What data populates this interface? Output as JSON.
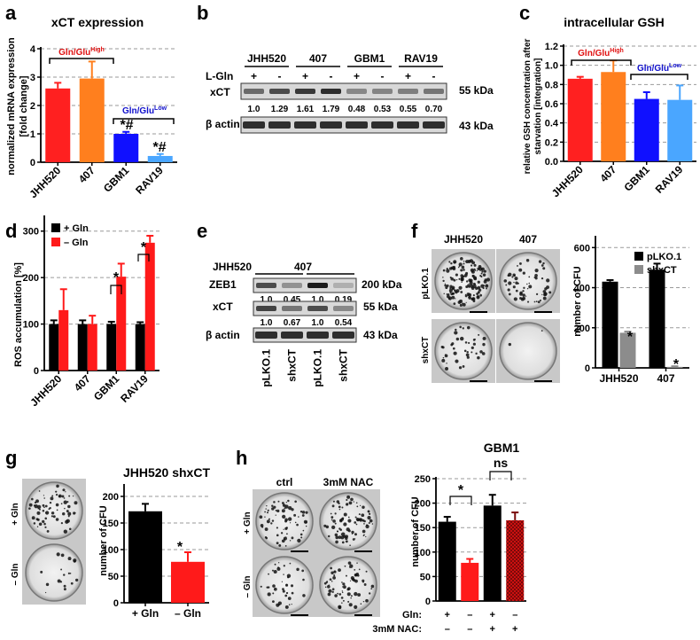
{
  "panels": {
    "a": {
      "letter": "a",
      "title": "xCT expression",
      "ylabel": [
        "normalized mRNA expression",
        "[fold change]"
      ],
      "group_high_prefix": "Gln/Glu",
      "group_high_sup": "High",
      "group_low_prefix": "Gln/Glu",
      "group_low_sup": "Low",
      "sig_gbm1": "*#",
      "sig_rav19": "*#"
    },
    "b": {
      "letter": "b",
      "cell_lines": [
        "JHH520",
        "407",
        "GBM1",
        "RAV19"
      ],
      "lgln_label": "L-Gln",
      "lane_signs": [
        "+",
        "-",
        "+",
        "-",
        "+",
        "-",
        "+",
        "-"
      ],
      "row_xct": "xCT",
      "row_actin": "β actin",
      "xct_values": [
        "1.0",
        "1.29",
        "1.61",
        "1.79",
        "0.48",
        "0.53",
        "0.55",
        "0.70"
      ],
      "kda_xct": "55 kDa",
      "kda_actin": "43 kDa"
    },
    "c": {
      "letter": "c",
      "title": "intracellular GSH",
      "ylabel": [
        "relative GSH concentration after",
        "starvation [integration]"
      ],
      "group_high_prefix": "Gln/Glu",
      "group_high_sup": "High",
      "group_low_prefix": "Gln/Glu",
      "group_low_sup": "Low"
    },
    "d": {
      "letter": "d",
      "ylabel": "ROS accumulation [%]",
      "legend": [
        "+ Gln",
        "– Gln"
      ],
      "sig_gbm1": "*",
      "sig_rav19": "*"
    },
    "e": {
      "letter": "e",
      "cell_lines": [
        "JHH520",
        "407"
      ],
      "row_zeb1": "ZEB1",
      "row_xct": "xCT",
      "row_actin": "β actin",
      "zeb1_values": [
        "1.0",
        "0.45",
        "1.0",
        "0.19"
      ],
      "xct_values": [
        "1.0",
        "0.67",
        "1.0",
        "0.54"
      ],
      "kda_zeb1": "200 kDa",
      "kda_xct": "55 kDa",
      "kda_actin": "43 kDa",
      "lanes": [
        "pLKO.1",
        "shxCT",
        "pLKO.1",
        "shxCT"
      ]
    },
    "f": {
      "letter": "f",
      "col_labels": [
        "JHH520",
        "407"
      ],
      "row_labels": [
        "pLKO.1",
        "shxCT"
      ],
      "ylabel": "number of CFU",
      "legend": [
        "pLKO.1",
        "shxCT"
      ],
      "sig": "*"
    },
    "g": {
      "letter": "g",
      "title": "JHH520 shxCT",
      "row_labels": [
        "+ Gln",
        "– Gln"
      ],
      "ylabel": "number of CFU",
      "sig": "*"
    },
    "h": {
      "letter": "h",
      "col_labels": [
        "ctrl",
        "3mM NAC"
      ],
      "row_labels": [
        "+ Gln",
        "– Gln"
      ],
      "title": "GBM1",
      "ylabel": "number of CFU",
      "gln_label": "Gln:",
      "nac_label": "3mM NAC:",
      "gln_signs": [
        "+",
        "–",
        "+",
        "–"
      ],
      "nac_signs": [
        "–",
        "–",
        "+",
        "+"
      ],
      "sig": "*",
      "ns": "ns"
    }
  },
  "chart_data": [
    {
      "id": "a",
      "type": "bar",
      "categories": [
        "JHH520",
        "407",
        "GBM1",
        "RAV19"
      ],
      "values": [
        2.6,
        2.95,
        1.0,
        0.22
      ],
      "errors": [
        0.2,
        0.6,
        0.07,
        0.07
      ],
      "colors": [
        "#ff2020",
        "#ff7f1e",
        "#1010ff",
        "#4aa6ff"
      ],
      "ylim": [
        0,
        4
      ],
      "yticks": [
        0,
        1,
        2,
        3,
        4
      ],
      "grid": "dashed"
    },
    {
      "id": "c",
      "type": "bar",
      "categories": [
        "JHH520",
        "407",
        "GBM1",
        "RAV19"
      ],
      "values": [
        0.86,
        0.93,
        0.65,
        0.64
      ],
      "errors": [
        0.02,
        0.12,
        0.07,
        0.15
      ],
      "colors": [
        "#ff2020",
        "#ff7f1e",
        "#1010ff",
        "#4aa6ff"
      ],
      "ylim": [
        0,
        1.2
      ],
      "yticks": [
        0.0,
        0.2,
        0.4,
        0.6,
        0.8,
        1.0,
        1.2
      ],
      "grid": "dashed"
    },
    {
      "id": "d",
      "type": "bar",
      "categories": [
        "JHH520",
        "407",
        "GBM1",
        "RAV19"
      ],
      "series": [
        {
          "name": "+ Gln",
          "values": [
            100,
            100,
            100,
            100
          ],
          "errors": [
            8,
            8,
            5,
            4
          ],
          "color": "#000000"
        },
        {
          "name": "– Gln",
          "values": [
            130,
            100,
            202,
            275
          ],
          "errors": [
            45,
            18,
            28,
            15
          ],
          "color": "#ff1a1a"
        }
      ],
      "ylim": [
        0,
        330
      ],
      "yticks": [
        0,
        100,
        200,
        300
      ],
      "grid": "dashed",
      "legend": "top-left"
    },
    {
      "id": "f",
      "type": "bar",
      "categories": [
        "JHH520",
        "407"
      ],
      "series": [
        {
          "name": "pLKO.1",
          "values": [
            430,
            490
          ],
          "errors": [
            8,
            30
          ],
          "color": "#000000"
        },
        {
          "name": "shxCT",
          "values": [
            175,
            5
          ],
          "errors": [
            6,
            3
          ],
          "color": "#8c8c8c"
        }
      ],
      "ylim": [
        0,
        650
      ],
      "yticks": [
        0,
        200,
        400,
        600
      ],
      "grid": "dashed",
      "legend": "top-right"
    },
    {
      "id": "g",
      "type": "bar",
      "categories": [
        "+ Gln",
        "– Gln"
      ],
      "values": [
        172,
        77
      ],
      "errors": [
        14,
        18
      ],
      "colors": [
        "#000000",
        "#ff1a1a"
      ],
      "ylim": [
        0,
        220
      ],
      "yticks": [
        0,
        50,
        100,
        150,
        200
      ],
      "grid": "dashed"
    },
    {
      "id": "h",
      "type": "bar",
      "categories": [
        "+Gln",
        "–Gln",
        "+Gln +NAC",
        "–Gln +NAC"
      ],
      "values": [
        162,
        78,
        195,
        165
      ],
      "errors": [
        10,
        8,
        22,
        16
      ],
      "colors": [
        "#000000",
        "#ff1a1a",
        "#000000",
        "#cc1010"
      ],
      "ylim": [
        0,
        250
      ],
      "yticks": [
        0,
        50,
        100,
        150,
        200,
        250
      ],
      "grid": "dashed"
    }
  ]
}
